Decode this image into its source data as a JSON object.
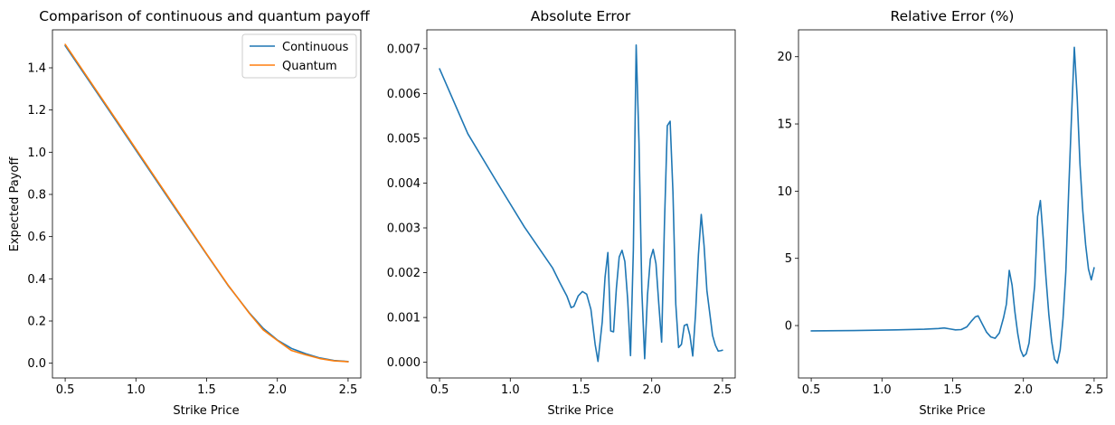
{
  "chart_data": [
    {
      "type": "line",
      "title": "Comparison of continuous and quantum payoff",
      "xlabel": "Strike Price",
      "ylabel": "Expected Payoff",
      "xlim": [
        0.41,
        2.59
      ],
      "ylim": [
        -0.07,
        1.58
      ],
      "xticks": [
        0.5,
        1.0,
        1.5,
        2.0,
        2.5
      ],
      "xtick_labels": [
        "0.5",
        "1.0",
        "1.5",
        "2.0",
        "2.5"
      ],
      "yticks": [
        0.0,
        0.2,
        0.4,
        0.6,
        0.8,
        1.0,
        1.2,
        1.4
      ],
      "ytick_labels": [
        "0.0",
        "0.2",
        "0.4",
        "0.6",
        "0.8",
        "1.0",
        "1.2",
        "1.4"
      ],
      "grid": false,
      "legend": "upper right",
      "series": [
        {
          "name": "Continuous",
          "color": "#1f77b4",
          "x": [
            0.5,
            0.7,
            0.9,
            1.1,
            1.3,
            1.5,
            1.65,
            1.8,
            1.9,
            2.0,
            2.1,
            2.2,
            2.3,
            2.4,
            2.5
          ],
          "y": [
            1.505,
            1.307,
            1.109,
            0.91,
            0.712,
            0.516,
            0.37,
            0.24,
            0.165,
            0.11,
            0.07,
            0.045,
            0.025,
            0.013,
            0.008
          ]
        },
        {
          "name": "Quantum",
          "color": "#ff7f0e",
          "x": [
            0.5,
            0.7,
            0.9,
            1.1,
            1.3,
            1.5,
            1.65,
            1.8,
            1.9,
            2.0,
            2.1,
            2.2,
            2.3,
            2.4,
            2.5
          ],
          "y": [
            1.511,
            1.313,
            1.115,
            0.916,
            0.717,
            0.518,
            0.372,
            0.238,
            0.158,
            0.108,
            0.06,
            0.04,
            0.022,
            0.011,
            0.007
          ]
        }
      ]
    },
    {
      "type": "line",
      "title": "Absolute Error",
      "xlabel": "Strike Price",
      "ylabel": "",
      "xlim": [
        0.41,
        2.59
      ],
      "ylim": [
        -0.00035,
        0.00742
      ],
      "xticks": [
        0.5,
        1.0,
        1.5,
        2.0,
        2.5
      ],
      "xtick_labels": [
        "0.5",
        "1.0",
        "1.5",
        "2.0",
        "2.5"
      ],
      "yticks": [
        0.0,
        0.001,
        0.002,
        0.003,
        0.004,
        0.005,
        0.006,
        0.007
      ],
      "ytick_labels": [
        "0.000",
        "0.001",
        "0.002",
        "0.003",
        "0.004",
        "0.005",
        "0.006",
        "0.007"
      ],
      "grid": false,
      "series": [
        {
          "color": "#1f77b4",
          "x": [
            0.5,
            0.7,
            0.9,
            1.1,
            1.3,
            1.35,
            1.4,
            1.43,
            1.45,
            1.48,
            1.51,
            1.54,
            1.57,
            1.6,
            1.62,
            1.65,
            1.67,
            1.69,
            1.71,
            1.73,
            1.75,
            1.77,
            1.79,
            1.81,
            1.83,
            1.85,
            1.87,
            1.89,
            1.91,
            1.93,
            1.95,
            1.97,
            1.99,
            2.01,
            2.03,
            2.05,
            2.07,
            2.09,
            2.11,
            2.13,
            2.15,
            2.17,
            2.19,
            2.21,
            2.23,
            2.25,
            2.27,
            2.29,
            2.31,
            2.33,
            2.35,
            2.37,
            2.39,
            2.41,
            2.43,
            2.45,
            2.47,
            2.49,
            2.5
          ],
          "y": [
            0.00655,
            0.0051,
            0.00405,
            0.00302,
            0.0021,
            0.00178,
            0.00148,
            0.00122,
            0.00125,
            0.00148,
            0.00158,
            0.00152,
            0.00118,
            0.0004,
            2e-05,
            0.0009,
            0.0019,
            0.00245,
            0.0007,
            0.00068,
            0.00165,
            0.00235,
            0.0025,
            0.00225,
            0.0014,
            0.00015,
            0.0025,
            0.00708,
            0.0049,
            0.0016,
            8e-05,
            0.0015,
            0.0023,
            0.00252,
            0.0022,
            0.0013,
            0.00045,
            0.0031,
            0.00528,
            0.00538,
            0.0038,
            0.0013,
            0.00033,
            0.0004,
            0.00082,
            0.00085,
            0.0006,
            0.00014,
            0.0011,
            0.0024,
            0.0033,
            0.0026,
            0.0016,
            0.0011,
            0.0006,
            0.00038,
            0.00025,
            0.00026,
            0.00027
          ]
        }
      ]
    },
    {
      "type": "line",
      "title": "Relative Error (%)",
      "xlabel": "Strike Price",
      "ylabel": "",
      "xlim": [
        0.41,
        2.59
      ],
      "ylim": [
        -3.9,
        22.0
      ],
      "xticks": [
        0.5,
        1.0,
        1.5,
        2.0,
        2.5
      ],
      "xtick_labels": [
        "0.5",
        "1.0",
        "1.5",
        "2.0",
        "2.5"
      ],
      "yticks": [
        0,
        5,
        10,
        15,
        20
      ],
      "ytick_labels": [
        "0",
        "5",
        "10",
        "15",
        "20"
      ],
      "grid": false,
      "series": [
        {
          "color": "#1f77b4",
          "x": [
            0.5,
            0.8,
            1.1,
            1.3,
            1.4,
            1.44,
            1.48,
            1.52,
            1.56,
            1.6,
            1.63,
            1.66,
            1.68,
            1.71,
            1.74,
            1.77,
            1.8,
            1.83,
            1.86,
            1.88,
            1.9,
            1.92,
            1.94,
            1.96,
            1.98,
            2.0,
            2.02,
            2.04,
            2.06,
            2.08,
            2.1,
            2.12,
            2.14,
            2.16,
            2.18,
            2.2,
            2.22,
            2.24,
            2.26,
            2.28,
            2.3,
            2.32,
            2.34,
            2.36,
            2.38,
            2.4,
            2.42,
            2.44,
            2.46,
            2.48,
            2.5
          ],
          "y": [
            -0.4,
            -0.37,
            -0.32,
            -0.27,
            -0.22,
            -0.18,
            -0.25,
            -0.32,
            -0.3,
            -0.1,
            0.3,
            0.65,
            0.72,
            0.1,
            -0.5,
            -0.85,
            -0.95,
            -0.55,
            0.6,
            1.6,
            4.1,
            3.0,
            1.0,
            -0.6,
            -1.8,
            -2.3,
            -2.1,
            -1.3,
            0.8,
            3.0,
            8.1,
            9.3,
            6.5,
            3.5,
            0.8,
            -1.2,
            -2.5,
            -2.8,
            -1.8,
            0.5,
            4.0,
            10.0,
            15.5,
            20.7,
            17.0,
            12.0,
            8.5,
            6.0,
            4.2,
            3.4,
            4.3
          ]
        }
      ]
    }
  ]
}
